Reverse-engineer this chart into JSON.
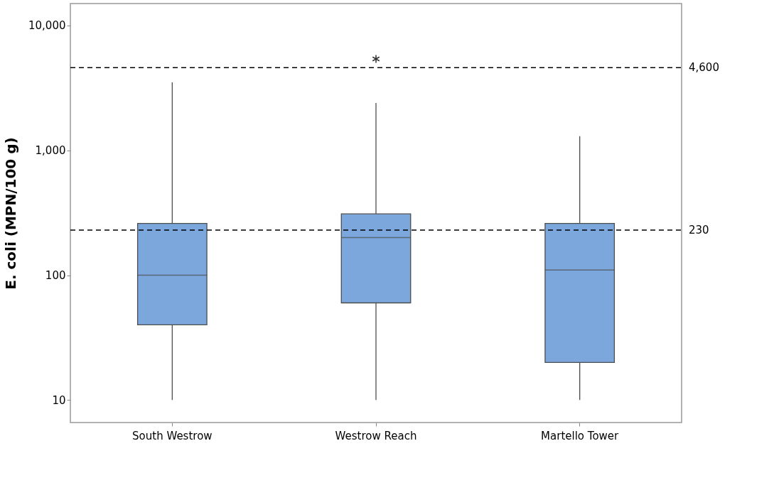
{
  "chart_data": {
    "type": "box",
    "ylabel": "E. coli (MPN/100 g)",
    "categories": [
      "South Westrow",
      "Westrow Reach",
      "Martello Tower"
    ],
    "series": [
      {
        "color": "#7ba7dc",
        "boxes": [
          {
            "low": 10,
            "q1": 40,
            "median": 100,
            "q3": 260,
            "high": 3500
          },
          {
            "low": 10,
            "q1": 60,
            "median": 200,
            "q3": 310,
            "high": 2400,
            "outliers": [
              5400
            ]
          },
          {
            "low": 10,
            "q1": 20,
            "median": 110,
            "q3": 260,
            "high": 1300
          }
        ]
      }
    ],
    "log": true,
    "ylim": [
      6.6,
      15000
    ],
    "yticks": [
      10,
      100,
      {
        "value": 1000,
        "label": "1,000"
      },
      {
        "value": 10000,
        "label": "10,000"
      }
    ],
    "ref_lines": [
      {
        "axis": "y",
        "value": 4600,
        "label": "4,600",
        "line_style": "dashed"
      },
      {
        "axis": "y",
        "value": 230,
        "label": "230",
        "line_style": "dashed"
      }
    ],
    "grid": false,
    "marker": "star"
  }
}
